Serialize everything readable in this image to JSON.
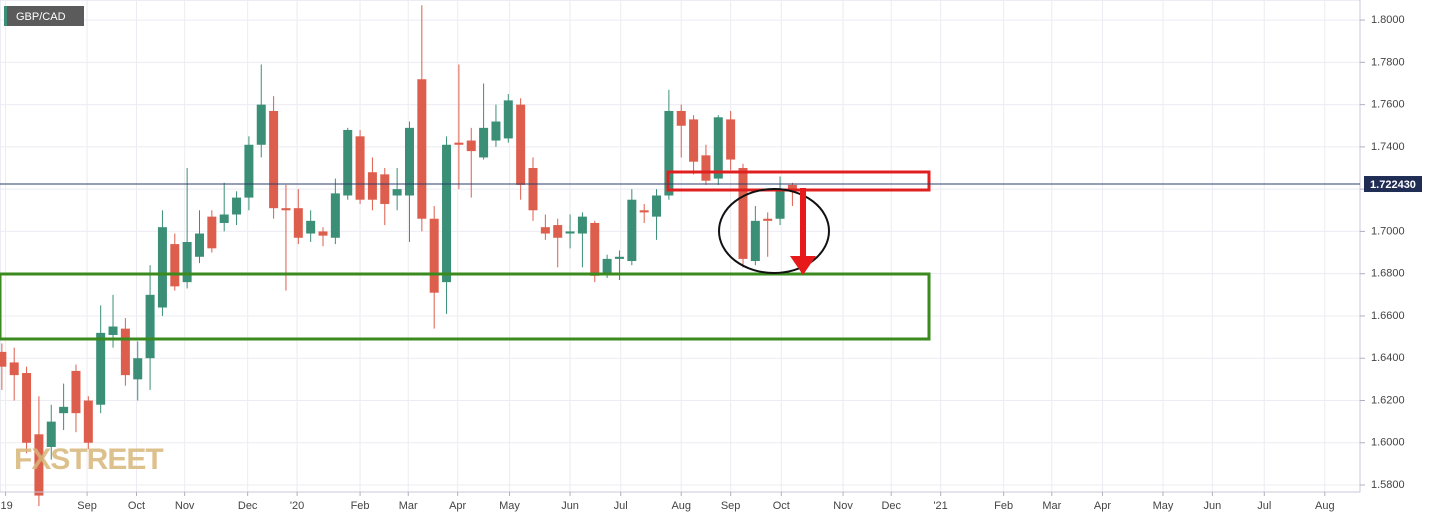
{
  "chart_data": {
    "type": "candlestick",
    "title": "GBP/CAD",
    "watermark": "FXSTREET",
    "x": [
      0,
      1,
      2,
      3,
      4,
      5,
      6,
      7,
      8,
      9,
      10,
      11,
      12,
      13,
      14,
      15,
      16,
      17,
      18,
      19,
      20,
      21,
      22,
      23,
      24,
      25,
      26,
      27,
      28,
      29,
      30,
      31,
      32,
      33,
      34,
      35,
      36,
      37,
      38,
      39,
      40,
      41,
      42,
      43,
      44,
      45,
      46,
      47,
      48,
      49,
      50,
      51,
      52,
      53,
      54,
      55,
      56,
      57,
      58,
      59,
      60,
      61,
      62,
      63,
      64
    ],
    "open": [
      1.643,
      1.638,
      1.633,
      1.604,
      1.598,
      1.614,
      1.634,
      1.62,
      1.618,
      1.651,
      1.654,
      1.63,
      1.64,
      1.664,
      1.694,
      1.676,
      1.688,
      1.707,
      1.704,
      1.708,
      1.716,
      1.741,
      1.757,
      1.711,
      1.711,
      1.699,
      1.7,
      1.697,
      1.717,
      1.745,
      1.728,
      1.727,
      1.717,
      1.717,
      1.772,
      1.706,
      1.676,
      1.742,
      1.743,
      1.735,
      1.743,
      1.744,
      1.76,
      1.73,
      1.702,
      1.703,
      1.699,
      1.699,
      1.704,
      1.68,
      1.687,
      1.686,
      1.71,
      1.707,
      1.717,
      1.757,
      1.753,
      1.736,
      1.725,
      1.753,
      1.73,
      1.686,
      1.706,
      1.706,
      1.722
    ],
    "high": [
      1.647,
      1.645,
      1.636,
      1.622,
      1.618,
      1.628,
      1.637,
      1.622,
      1.665,
      1.67,
      1.659,
      1.648,
      1.684,
      1.71,
      1.699,
      1.73,
      1.71,
      1.71,
      1.723,
      1.719,
      1.745,
      1.779,
      1.764,
      1.722,
      1.72,
      1.71,
      1.702,
      1.725,
      1.749,
      1.748,
      1.735,
      1.73,
      1.73,
      1.752,
      1.807,
      1.712,
      1.745,
      1.779,
      1.749,
      1.77,
      1.76,
      1.765,
      1.763,
      1.735,
      1.708,
      1.706,
      1.708,
      1.709,
      1.705,
      1.689,
      1.691,
      1.72,
      1.713,
      1.72,
      1.767,
      1.76,
      1.755,
      1.741,
      1.755,
      1.757,
      1.732,
      1.712,
      1.709,
      1.726,
      1.723
    ],
    "low": [
      1.625,
      1.62,
      1.595,
      1.57,
      1.592,
      1.606,
      1.605,
      1.597,
      1.614,
      1.645,
      1.627,
      1.62,
      1.625,
      1.66,
      1.672,
      1.673,
      1.685,
      1.69,
      1.7,
      1.703,
      1.71,
      1.735,
      1.706,
      1.672,
      1.694,
      1.695,
      1.693,
      1.694,
      1.715,
      1.713,
      1.71,
      1.703,
      1.71,
      1.695,
      1.7,
      1.654,
      1.661,
      1.72,
      1.716,
      1.734,
      1.74,
      1.742,
      1.715,
      1.705,
      1.696,
      1.683,
      1.692,
      1.683,
      1.676,
      1.678,
      1.677,
      1.684,
      1.704,
      1.696,
      1.715,
      1.735,
      1.727,
      1.722,
      1.722,
      1.729,
      1.683,
      1.684,
      1.688,
      1.703,
      1.712
    ],
    "close": [
      1.636,
      1.632,
      1.6,
      1.575,
      1.61,
      1.617,
      1.614,
      1.6,
      1.652,
      1.655,
      1.632,
      1.64,
      1.67,
      1.702,
      1.674,
      1.695,
      1.699,
      1.692,
      1.708,
      1.716,
      1.741,
      1.76,
      1.711,
      1.71,
      1.697,
      1.705,
      1.698,
      1.718,
      1.748,
      1.715,
      1.715,
      1.713,
      1.72,
      1.749,
      1.706,
      1.671,
      1.741,
      1.741,
      1.738,
      1.749,
      1.752,
      1.762,
      1.722,
      1.71,
      1.699,
      1.697,
      1.7,
      1.707,
      1.679,
      1.687,
      1.688,
      1.715,
      1.709,
      1.717,
      1.757,
      1.75,
      1.733,
      1.724,
      1.754,
      1.734,
      1.687,
      1.705,
      1.705,
      1.72,
      1.719
    ],
    "up_color": "#3b8f77",
    "down_color": "#dd5e4d",
    "last_price": {
      "value": 1.72243,
      "label": "1.722430"
    },
    "xlim": [
      -0.15,
      109.95
    ],
    "xticks": [
      {
        "value": 0.3,
        "label": "'19"
      },
      {
        "value": 6.9,
        "label": "Sep"
      },
      {
        "value": 10.9,
        "label": "Oct"
      },
      {
        "value": 14.8,
        "label": "Nov"
      },
      {
        "value": 19.9,
        "label": "Dec"
      },
      {
        "value": 23.9,
        "label": "'20"
      },
      {
        "value": 29.0,
        "label": "Feb"
      },
      {
        "value": 32.9,
        "label": "Mar"
      },
      {
        "value": 36.9,
        "label": "Apr"
      },
      {
        "value": 41.1,
        "label": "May"
      },
      {
        "value": 46.0,
        "label": "Jun"
      },
      {
        "value": 50.1,
        "label": "Jul"
      },
      {
        "value": 55.0,
        "label": "Aug"
      },
      {
        "value": 59.0,
        "label": "Sep"
      },
      {
        "value": 63.1,
        "label": "Oct"
      },
      {
        "value": 68.1,
        "label": "Nov"
      },
      {
        "value": 72.0,
        "label": "Dec"
      },
      {
        "value": 76.0,
        "label": "'21"
      },
      {
        "value": 81.1,
        "label": "Feb"
      },
      {
        "value": 85.0,
        "label": "Mar"
      },
      {
        "value": 89.1,
        "label": "Apr"
      },
      {
        "value": 94.0,
        "label": "May"
      },
      {
        "value": 98.0,
        "label": "Jun"
      },
      {
        "value": 102.2,
        "label": "Jul"
      },
      {
        "value": 107.1,
        "label": "Aug"
      }
    ],
    "ylim": [
      1.5767,
      1.8095
    ],
    "yticks": [
      {
        "value": 1.58,
        "label": "1.5800"
      },
      {
        "value": 1.6,
        "label": "1.6000"
      },
      {
        "value": 1.62,
        "label": "1.6200"
      },
      {
        "value": 1.64,
        "label": "1.6400"
      },
      {
        "value": 1.66,
        "label": "1.6600"
      },
      {
        "value": 1.68,
        "label": "1.6800"
      },
      {
        "value": 1.7,
        "label": "1.7000"
      },
      {
        "value": 1.72,
        "label": "1.7200"
      },
      {
        "value": 1.74,
        "label": "1.7400"
      },
      {
        "value": 1.76,
        "label": "1.7600"
      },
      {
        "value": 1.78,
        "label": "1.7800"
      },
      {
        "value": 1.8,
        "label": "1.8000"
      }
    ],
    "grid": true
  }
}
